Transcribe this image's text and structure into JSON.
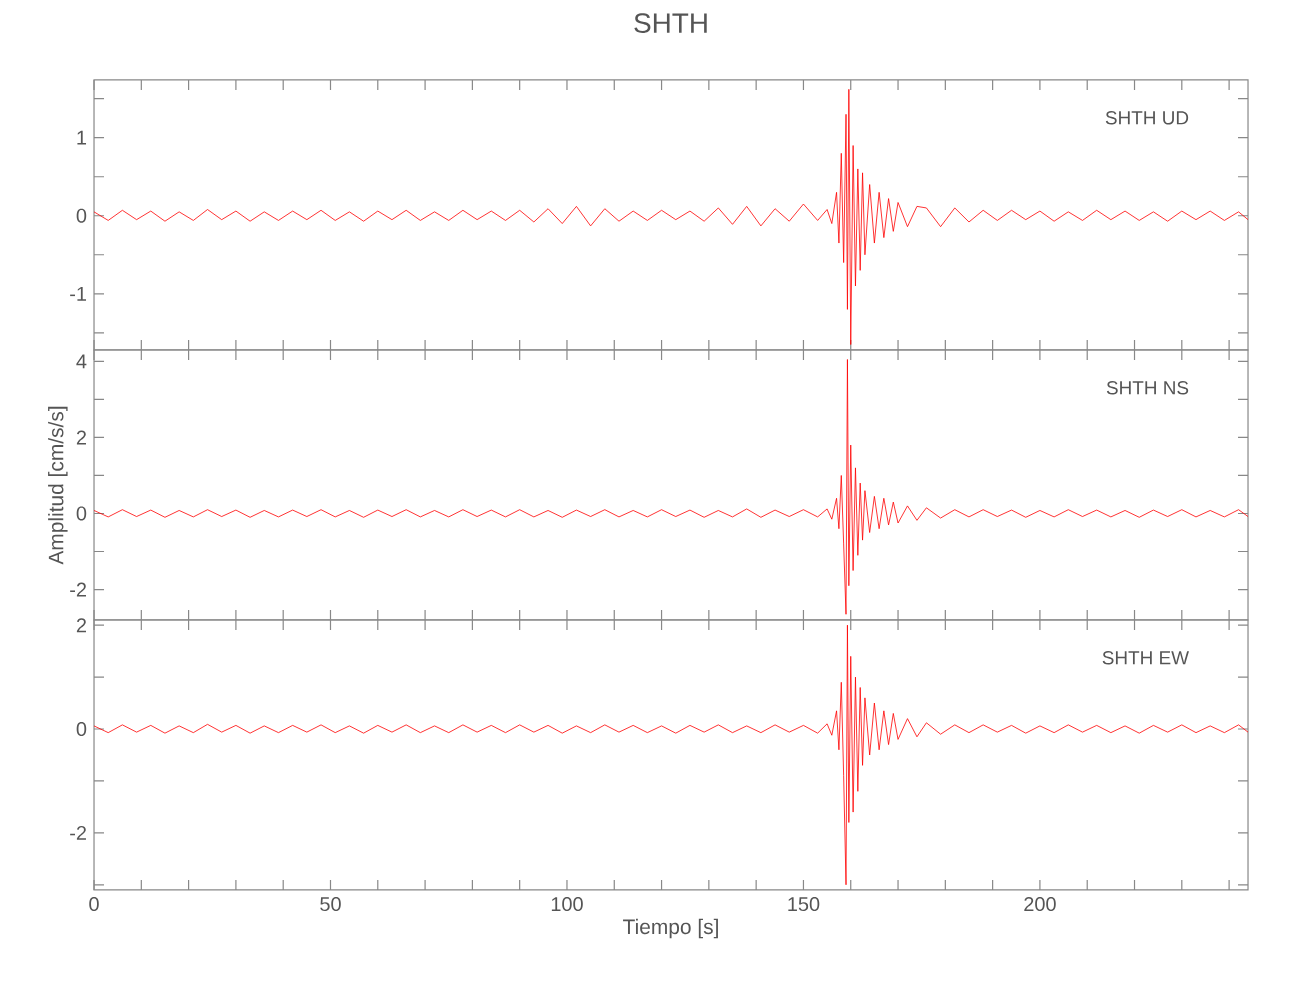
{
  "chart_data": [
    {
      "type": "line",
      "title": "SHTH",
      "annotations": [
        "SHTH   UD"
      ],
      "color": "#ff0000",
      "tick_labels": "y",
      "xlim": [
        0,
        244
      ],
      "ylim": [
        -1.72,
        1.74
      ],
      "xticks": [
        0,
        10,
        20,
        30,
        40,
        50,
        60,
        70,
        80,
        90,
        100,
        110,
        120,
        130,
        140,
        150,
        160,
        170,
        180,
        190,
        200,
        210,
        220,
        230,
        240
      ],
      "yticks": [
        {
          "value": -1.5,
          "label": null
        },
        -1,
        {
          "value": -0.5,
          "label": null
        },
        0,
        {
          "value": 0.5,
          "label": null
        },
        1,
        {
          "value": 1.5,
          "label": null
        }
      ],
      "x": [
        0,
        3,
        6,
        9,
        12,
        15,
        18,
        21,
        24,
        27,
        30,
        33,
        36,
        39,
        42,
        45,
        48,
        51,
        54,
        57,
        60,
        63,
        66,
        69,
        72,
        75,
        78,
        81,
        84,
        87,
        90,
        93,
        96,
        99,
        102,
        105,
        108,
        111,
        114,
        117,
        120,
        123,
        126,
        129,
        132,
        135,
        138,
        141,
        144,
        147,
        150,
        153,
        155,
        156,
        157,
        157.5,
        158,
        158.5,
        159,
        159.3,
        159.6,
        160,
        160.5,
        161,
        161.5,
        162,
        162.5,
        163,
        164,
        165,
        166,
        167,
        168,
        169,
        170,
        172,
        174,
        176,
        179,
        182,
        185,
        188,
        191,
        194,
        197,
        200,
        203,
        206,
        209,
        212,
        215,
        218,
        221,
        224,
        227,
        230,
        233,
        236,
        239,
        242,
        244
      ],
      "values": [
        0.05,
        -0.06,
        0.07,
        -0.05,
        0.06,
        -0.07,
        0.05,
        -0.06,
        0.08,
        -0.05,
        0.06,
        -0.07,
        0.05,
        -0.06,
        0.06,
        -0.05,
        0.07,
        -0.06,
        0.05,
        -0.07,
        0.06,
        -0.05,
        0.07,
        -0.06,
        0.05,
        -0.06,
        0.07,
        -0.05,
        0.06,
        -0.06,
        0.07,
        -0.08,
        0.09,
        -0.1,
        0.12,
        -0.13,
        0.09,
        -0.07,
        0.06,
        -0.06,
        0.07,
        -0.05,
        0.06,
        -0.07,
        0.1,
        -0.11,
        0.12,
        -0.13,
        0.09,
        -0.07,
        0.15,
        -0.06,
        0.08,
        -0.1,
        0.3,
        -0.35,
        0.8,
        -0.6,
        1.3,
        -1.2,
        1.62,
        -1.65,
        0.9,
        -0.9,
        0.6,
        -0.7,
        0.55,
        -0.5,
        0.4,
        -0.35,
        0.3,
        -0.28,
        0.22,
        -0.2,
        0.17,
        -0.14,
        0.12,
        0.1,
        -0.14,
        0.1,
        -0.08,
        0.07,
        -0.06,
        0.07,
        -0.05,
        0.06,
        -0.07,
        0.05,
        -0.06,
        0.07,
        -0.05,
        0.06,
        -0.06,
        0.05,
        -0.07,
        0.06,
        -0.05,
        0.06,
        -0.06,
        0.05,
        -0.05
      ]
    },
    {
      "type": "line",
      "ylabel": "Amplitud [cm/s/s]",
      "annotations": [
        "SHTH   NS"
      ],
      "color": "#ff0000",
      "tick_labels": "y",
      "xlim": [
        0,
        244
      ],
      "ylim": [
        -2.8,
        4.3
      ],
      "xticks": [
        0,
        10,
        20,
        30,
        40,
        50,
        60,
        70,
        80,
        90,
        100,
        110,
        120,
        130,
        140,
        150,
        160,
        170,
        180,
        190,
        200,
        210,
        220,
        230,
        240
      ],
      "yticks": [
        -2,
        {
          "value": -1,
          "label": null
        },
        0,
        {
          "value": 1,
          "label": null
        },
        2,
        {
          "value": 3,
          "label": null
        },
        4
      ],
      "x": [
        0,
        3,
        6,
        9,
        12,
        15,
        18,
        21,
        24,
        27,
        30,
        33,
        36,
        39,
        42,
        45,
        48,
        51,
        54,
        57,
        60,
        63,
        66,
        69,
        72,
        75,
        78,
        81,
        84,
        87,
        90,
        93,
        96,
        99,
        102,
        105,
        108,
        111,
        114,
        117,
        120,
        123,
        126,
        129,
        132,
        135,
        138,
        141,
        144,
        147,
        150,
        153,
        155,
        156,
        157,
        157.5,
        158,
        158.5,
        159,
        159.3,
        159.6,
        160,
        160.5,
        161,
        161.5,
        162,
        162.5,
        163,
        164,
        165,
        166,
        167,
        168,
        169,
        170,
        172,
        174,
        176,
        179,
        182,
        185,
        188,
        191,
        194,
        197,
        200,
        203,
        206,
        209,
        212,
        215,
        218,
        221,
        224,
        227,
        230,
        233,
        236,
        239,
        242,
        244
      ],
      "values": [
        0.08,
        -0.09,
        0.1,
        -0.08,
        0.09,
        -0.1,
        0.08,
        -0.09,
        0.1,
        -0.08,
        0.09,
        -0.1,
        0.08,
        -0.09,
        0.09,
        -0.08,
        0.1,
        -0.09,
        0.08,
        -0.1,
        0.09,
        -0.08,
        0.1,
        -0.09,
        0.08,
        -0.09,
        0.1,
        -0.08,
        0.09,
        -0.09,
        0.1,
        -0.09,
        0.08,
        -0.1,
        0.09,
        -0.08,
        0.1,
        -0.09,
        0.08,
        -0.09,
        0.1,
        -0.08,
        0.09,
        -0.1,
        0.08,
        -0.09,
        0.12,
        -0.1,
        0.09,
        -0.08,
        0.1,
        -0.09,
        0.12,
        -0.15,
        0.4,
        -0.4,
        1.0,
        -0.8,
        -2.65,
        4.05,
        -1.9,
        1.8,
        -1.5,
        1.2,
        -1.1,
        0.8,
        -0.7,
        0.6,
        -0.5,
        0.45,
        -0.4,
        0.4,
        -0.3,
        0.3,
        -0.25,
        0.2,
        -0.18,
        0.15,
        -0.12,
        0.1,
        -0.09,
        0.1,
        -0.08,
        0.09,
        -0.1,
        0.08,
        -0.09,
        0.1,
        -0.08,
        0.09,
        -0.09,
        0.08,
        -0.1,
        0.09,
        -0.08,
        0.1,
        -0.09,
        0.08,
        -0.09,
        0.1,
        -0.08
      ]
    },
    {
      "type": "line",
      "xlabel": "Tiempo [s]",
      "annotations": [
        "SHTH   EW"
      ],
      "color": "#ff0000",
      "xlim": [
        0,
        244
      ],
      "ylim": [
        -3.1,
        2.1
      ],
      "xticks": [
        0,
        {
          "value": 10,
          "label": null
        },
        {
          "value": 20,
          "label": null
        },
        {
          "value": 30,
          "label": null
        },
        {
          "value": 40,
          "label": null
        },
        50,
        {
          "value": 60,
          "label": null
        },
        {
          "value": 70,
          "label": null
        },
        {
          "value": 80,
          "label": null
        },
        {
          "value": 90,
          "label": null
        },
        100,
        {
          "value": 110,
          "label": null
        },
        {
          "value": 120,
          "label": null
        },
        {
          "value": 130,
          "label": null
        },
        {
          "value": 140,
          "label": null
        },
        150,
        {
          "value": 160,
          "label": null
        },
        {
          "value": 170,
          "label": null
        },
        {
          "value": 180,
          "label": null
        },
        {
          "value": 190,
          "label": null
        },
        200,
        {
          "value": 210,
          "label": null
        },
        {
          "value": 220,
          "label": null
        },
        {
          "value": 230,
          "label": null
        },
        {
          "value": 240,
          "label": null
        }
      ],
      "yticks": [
        {
          "value": -3,
          "label": null
        },
        -2,
        {
          "value": -1,
          "label": null
        },
        0,
        {
          "value": 1,
          "label": null
        },
        2
      ],
      "x": [
        0,
        3,
        6,
        9,
        12,
        15,
        18,
        21,
        24,
        27,
        30,
        33,
        36,
        39,
        42,
        45,
        48,
        51,
        54,
        57,
        60,
        63,
        66,
        69,
        72,
        75,
        78,
        81,
        84,
        87,
        90,
        93,
        96,
        99,
        102,
        105,
        108,
        111,
        114,
        117,
        120,
        123,
        126,
        129,
        132,
        135,
        138,
        141,
        144,
        147,
        150,
        153,
        155,
        156,
        157,
        157.5,
        158,
        158.5,
        159,
        159.3,
        159.6,
        160,
        160.5,
        161,
        161.5,
        162,
        162.5,
        163,
        164,
        165,
        166,
        167,
        168,
        169,
        170,
        172,
        174,
        176,
        179,
        182,
        185,
        188,
        191,
        194,
        197,
        200,
        203,
        206,
        209,
        212,
        215,
        218,
        221,
        224,
        227,
        230,
        233,
        236,
        239,
        242,
        244
      ],
      "values": [
        0.06,
        -0.07,
        0.08,
        -0.06,
        0.07,
        -0.08,
        0.06,
        -0.07,
        0.09,
        -0.06,
        0.07,
        -0.08,
        0.06,
        -0.07,
        0.07,
        -0.06,
        0.08,
        -0.07,
        0.06,
        -0.08,
        0.07,
        -0.06,
        0.08,
        -0.07,
        0.06,
        -0.07,
        0.08,
        -0.06,
        0.07,
        -0.07,
        0.08,
        -0.06,
        0.07,
        -0.08,
        0.06,
        -0.07,
        0.08,
        -0.06,
        0.07,
        -0.07,
        0.06,
        -0.08,
        0.07,
        -0.06,
        0.08,
        -0.07,
        0.06,
        -0.07,
        0.08,
        -0.06,
        0.07,
        -0.08,
        0.1,
        -0.12,
        0.35,
        -0.4,
        0.9,
        -0.9,
        -3.0,
        2.0,
        -1.8,
        1.4,
        -1.6,
        1.0,
        -1.2,
        0.8,
        -0.7,
        0.6,
        -0.5,
        0.5,
        -0.4,
        0.35,
        -0.3,
        0.3,
        -0.2,
        0.2,
        -0.15,
        0.12,
        -0.1,
        0.08,
        -0.07,
        0.08,
        -0.06,
        0.07,
        -0.08,
        0.06,
        -0.07,
        0.08,
        -0.06,
        0.07,
        -0.07,
        0.06,
        -0.08,
        0.07,
        -0.06,
        0.08,
        -0.07,
        0.06,
        -0.07,
        0.08,
        -0.06
      ]
    }
  ]
}
